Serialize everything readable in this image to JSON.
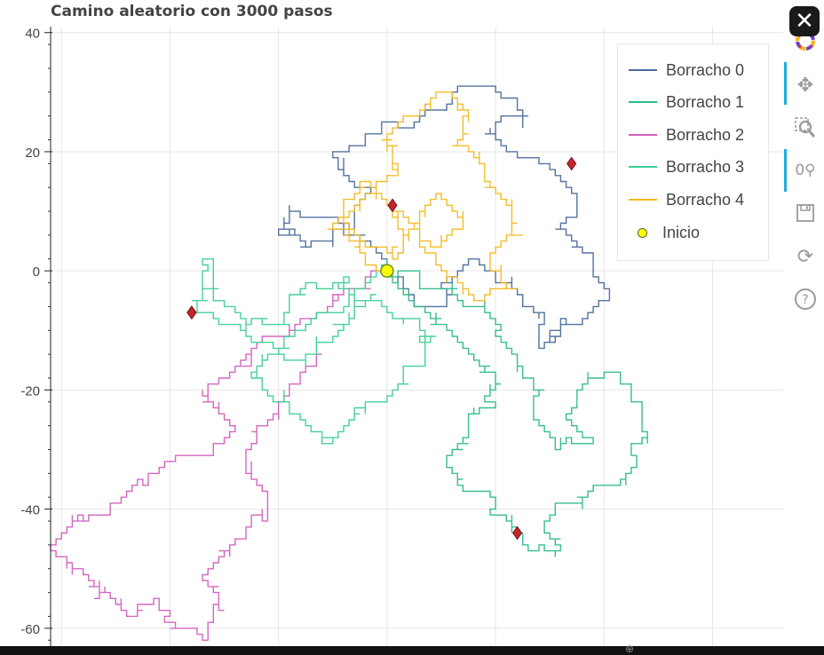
{
  "chart_data": {
    "type": "line",
    "title": "Camino aleatorio con 3000 pasos",
    "xlabel": "",
    "ylabel": "",
    "ylim": [
      -63,
      41
    ],
    "xlim": [
      -62,
      73
    ],
    "y_ticks": [
      "40",
      "20",
      "0",
      "-20",
      "-40",
      "-60"
    ],
    "grid": true,
    "legend_position": "top-right",
    "series": [
      {
        "name": "Borracho 0",
        "color": "#4a6b9a",
        "waypoints": [
          [
            0,
            0
          ],
          [
            -4,
            5
          ],
          [
            -10,
            9
          ],
          [
            -18,
            11
          ],
          [
            -20,
            7
          ],
          [
            -14,
            4
          ],
          [
            -7,
            8
          ],
          [
            -2,
            14
          ],
          [
            -9,
            17
          ],
          [
            -6,
            21
          ],
          [
            0,
            25
          ],
          [
            8,
            27
          ],
          [
            14,
            31
          ],
          [
            22,
            29
          ],
          [
            26,
            26
          ],
          [
            18,
            23
          ],
          [
            23,
            20
          ],
          [
            29,
            18
          ],
          [
            35,
            13
          ],
          [
            31,
            7
          ],
          [
            37,
            3
          ],
          [
            41,
            -3
          ],
          [
            35,
            -9
          ],
          [
            29,
            -12
          ],
          [
            27,
            -7
          ],
          [
            22,
            -2
          ],
          [
            16,
            2
          ],
          [
            10,
            -3
          ],
          [
            5,
            -6
          ],
          [
            2,
            -2
          ]
        ],
        "end": [
          34,
          18
        ]
      },
      {
        "name": "Borracho 1",
        "color": "#2db98b",
        "waypoints": [
          [
            0,
            0
          ],
          [
            5,
            -5
          ],
          [
            10,
            -9
          ],
          [
            16,
            -14
          ],
          [
            21,
            -19
          ],
          [
            15,
            -24
          ],
          [
            11,
            -31
          ],
          [
            14,
            -35
          ],
          [
            20,
            -38
          ],
          [
            24,
            -43
          ],
          [
            27,
            -47
          ],
          [
            31,
            -48
          ],
          [
            29,
            -44
          ],
          [
            33,
            -39
          ],
          [
            39,
            -36
          ],
          [
            45,
            -34
          ],
          [
            48,
            -28
          ],
          [
            45,
            -20
          ],
          [
            40,
            -17
          ],
          [
            35,
            -22
          ],
          [
            38,
            -29
          ],
          [
            31,
            -30
          ],
          [
            27,
            -25
          ],
          [
            29,
            -20
          ],
          [
            24,
            -16
          ],
          [
            20,
            -11
          ],
          [
            17,
            -6
          ],
          [
            11,
            -3
          ],
          [
            6,
            -1
          ],
          [
            0,
            0
          ]
        ],
        "end": [
          24,
          -44
        ]
      },
      {
        "name": "Borracho 2",
        "color": "#d15fbe",
        "waypoints": [
          [
            0,
            0
          ],
          [
            -6,
            -3
          ],
          [
            -12,
            -7
          ],
          [
            -19,
            -11
          ],
          [
            -26,
            -14
          ],
          [
            -30,
            -18
          ],
          [
            -34,
            -21
          ],
          [
            -28,
            -26
          ],
          [
            -33,
            -31
          ],
          [
            -40,
            -32
          ],
          [
            -45,
            -36
          ],
          [
            -50,
            -39
          ],
          [
            -56,
            -42
          ],
          [
            -62,
            -46
          ],
          [
            -58,
            -50
          ],
          [
            -52,
            -54
          ],
          [
            -47,
            -58
          ],
          [
            -42,
            -55
          ],
          [
            -38,
            -60
          ],
          [
            -33,
            -62
          ],
          [
            -30,
            -57
          ],
          [
            -34,
            -52
          ],
          [
            -30,
            -48
          ],
          [
            -25,
            -43
          ],
          [
            -22,
            -39
          ],
          [
            -26,
            -34
          ],
          [
            -24,
            -29
          ],
          [
            -20,
            -24
          ],
          [
            -16,
            -19
          ],
          [
            -12,
            -14
          ]
        ],
        "end": [
          -36,
          -7
        ]
      },
      {
        "name": "Borracho 3",
        "color": "#3ccf94",
        "waypoints": [
          [
            0,
            0
          ],
          [
            -5,
            -3
          ],
          [
            -10,
            -7
          ],
          [
            -16,
            -10
          ],
          [
            -21,
            -14
          ],
          [
            -25,
            -17
          ],
          [
            -20,
            -22
          ],
          [
            -15,
            -25
          ],
          [
            -11,
            -29
          ],
          [
            -7,
            -26
          ],
          [
            -3,
            -22
          ],
          [
            2,
            -20
          ],
          [
            6,
            -16
          ],
          [
            9,
            -11
          ],
          [
            4,
            -8
          ],
          [
            -2,
            -5
          ],
          [
            -8,
            -3
          ],
          [
            -14,
            -2
          ],
          [
            -18,
            -5
          ],
          [
            -24,
            -8
          ],
          [
            -29,
            -6
          ],
          [
            -34,
            -3
          ],
          [
            -32,
            1
          ],
          [
            -36,
            -5
          ],
          [
            -30,
            -9
          ],
          [
            -24,
            -12
          ],
          [
            -18,
            -15
          ],
          [
            -12,
            -12
          ],
          [
            -6,
            -8
          ],
          [
            -2,
            -4
          ]
        ],
        "end": [
          -36,
          -7
        ]
      },
      {
        "name": "Borracho 4",
        "color": "#f2b91f",
        "waypoints": [
          [
            0,
            0
          ],
          [
            -6,
            4
          ],
          [
            -9,
            9
          ],
          [
            -3,
            13
          ],
          [
            2,
            17
          ],
          [
            -1,
            22
          ],
          [
            4,
            26
          ],
          [
            10,
            30
          ],
          [
            15,
            27
          ],
          [
            12,
            21
          ],
          [
            18,
            18
          ],
          [
            22,
            12
          ],
          [
            24,
            6
          ],
          [
            19,
            3
          ],
          [
            23,
            -3
          ],
          [
            17,
            -5
          ],
          [
            12,
            -1
          ],
          [
            7,
            3
          ],
          [
            3,
            7
          ],
          [
            0,
            11
          ],
          [
            -4,
            15
          ],
          [
            -8,
            11
          ],
          [
            -11,
            7
          ],
          [
            -5,
            5
          ],
          [
            1,
            3
          ],
          [
            6,
            8
          ],
          [
            10,
            13
          ],
          [
            14,
            9
          ],
          [
            9,
            4
          ],
          [
            1,
            11
          ]
        ],
        "end": [
          1,
          11
        ]
      }
    ],
    "start_point": {
      "name": "Inicio",
      "x": 0,
      "y": 0,
      "color": "#ffff00"
    }
  },
  "ui": {
    "close_label": "✕",
    "tools": [
      "bokeh-logo",
      "pan-icon",
      "box-zoom-icon",
      "wheel-zoom-icon",
      "save-icon",
      "reset-icon",
      "help-icon"
    ]
  }
}
